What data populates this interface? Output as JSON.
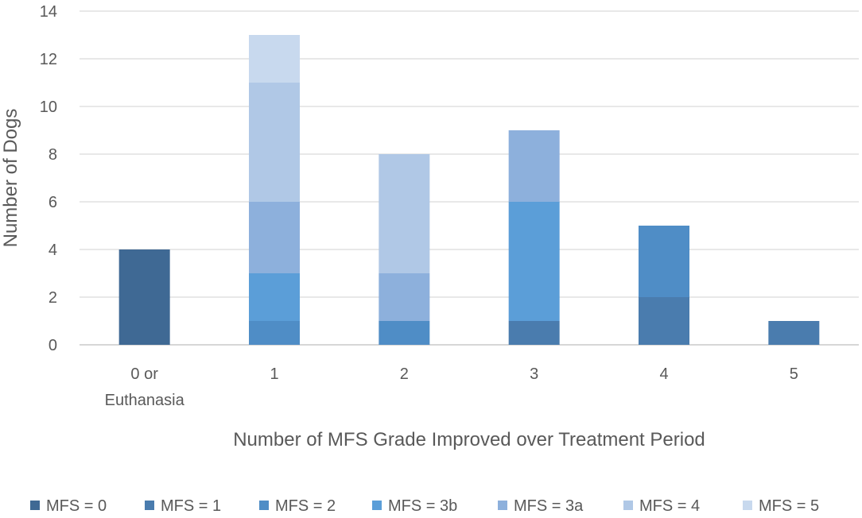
{
  "chart_data": {
    "type": "bar",
    "stacked": true,
    "title": "",
    "xlabel": "Number of MFS Grade Improved over Treatment Period",
    "ylabel": "Number of Dogs",
    "ylim": [
      0,
      14
    ],
    "yticks": [
      0,
      2,
      4,
      6,
      8,
      10,
      12,
      14
    ],
    "grid": true,
    "legend_position": "bottom",
    "categories": [
      [
        "0 or",
        "Euthanasia"
      ],
      [
        "1"
      ],
      [
        "2"
      ],
      [
        "3"
      ],
      [
        "4"
      ],
      [
        "5"
      ]
    ],
    "series": [
      {
        "name": "MFS = 0",
        "color": "#3f6994",
        "values": [
          4,
          0,
          0,
          0,
          0,
          0
        ]
      },
      {
        "name": "MFS = 1",
        "color": "#4a7cae",
        "values": [
          0,
          0,
          0,
          1,
          2,
          1
        ]
      },
      {
        "name": "MFS = 2",
        "color": "#4f8dc6",
        "values": [
          0,
          1,
          1,
          0,
          3,
          0
        ]
      },
      {
        "name": "MFS = 3b",
        "color": "#5b9ed8",
        "values": [
          0,
          2,
          0,
          5,
          0,
          0
        ]
      },
      {
        "name": "MFS = 3a",
        "color": "#8db0dc",
        "values": [
          0,
          3,
          2,
          3,
          0,
          0
        ]
      },
      {
        "name": "MFS = 4",
        "color": "#b0c8e6",
        "values": [
          0,
          5,
          5,
          0,
          0,
          0
        ]
      },
      {
        "name": "MFS = 5",
        "color": "#c8d9ee",
        "values": [
          0,
          2,
          0,
          0,
          0,
          0
        ]
      }
    ]
  }
}
